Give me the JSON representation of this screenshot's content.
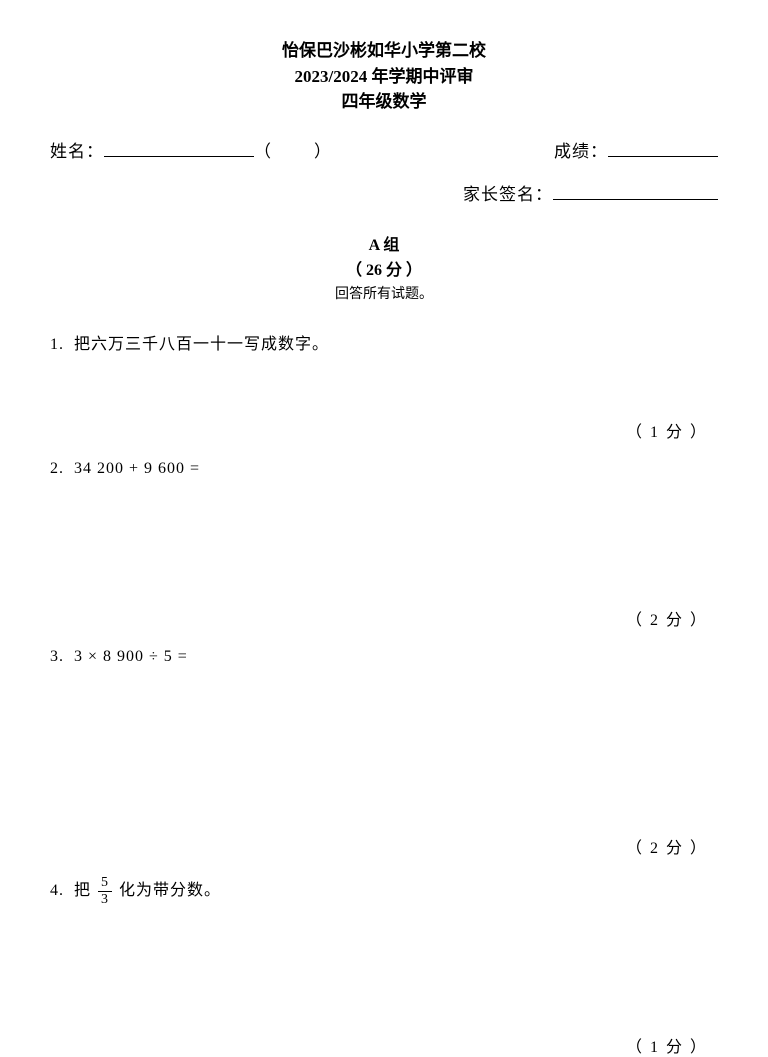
{
  "header": {
    "school": "怡保巴沙彬如华小学第二校",
    "term": "2023/2024 年学期中评审",
    "grade": "四年级数学"
  },
  "info": {
    "name_label": "姓名：",
    "paren_open": "（",
    "paren_close": "）",
    "score_label": "成绩：",
    "signature_label": "家长签名："
  },
  "section": {
    "group": "A 组",
    "points": "（ 26 分 ）",
    "instruction": "回答所有试题。"
  },
  "questions": {
    "q1": {
      "num": "1.",
      "text": "把六万三千八百一十一写成数字。",
      "score": "（ 1 分 ）"
    },
    "q2": {
      "num": "2.",
      "text": "34 200 + 9 600 =",
      "score": "（ 2 分 ）"
    },
    "q3": {
      "num": "3.",
      "text": "3 × 8 900 ÷ 5 =",
      "score": "（ 2 分 ）"
    },
    "q4": {
      "num": "4.",
      "prefix": "把",
      "frac_num": "5",
      "frac_den": "3",
      "suffix": "化为带分数。",
      "score": "（ 1 分 ）"
    }
  }
}
